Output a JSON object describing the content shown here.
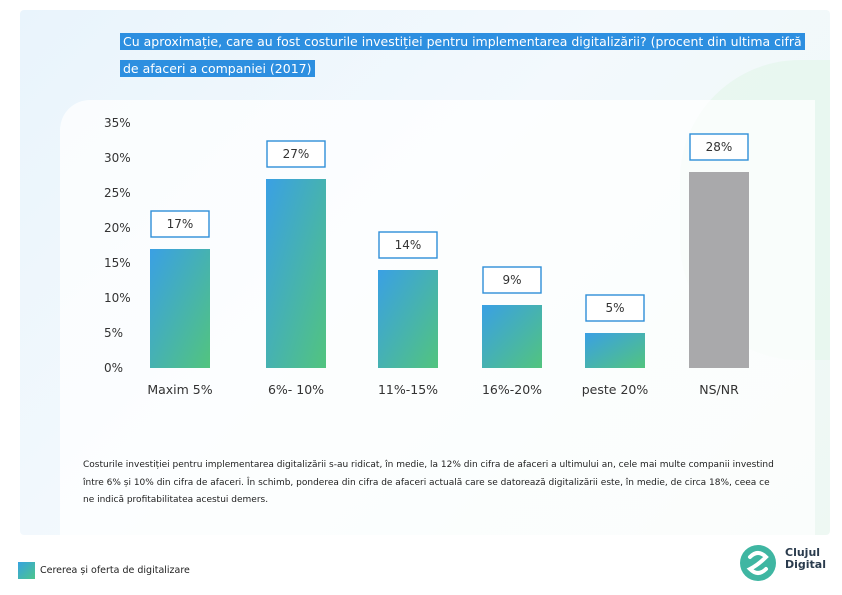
{
  "chart_data": {
    "type": "bar",
    "title": "Cu aproximație, care au fost costurile investiției pentru implementarea digitalizării? (procent din ultima cifră de afaceri a companiei (2017)",
    "categories": [
      "Maxim 5%",
      "6%- 10%",
      "11%-15%",
      "16%-20%",
      "peste 20%",
      "NS/NR"
    ],
    "values": [
      17,
      27,
      14,
      9,
      5,
      28
    ],
    "data_labels": [
      "17%",
      "27%",
      "14%",
      "9%",
      "5%",
      "28%"
    ],
    "yticks": [
      "0%",
      "5%",
      "10%",
      "15%",
      "20%",
      "25%",
      "30%",
      "35%"
    ],
    "ylim": [
      0,
      35
    ],
    "xlabel": "",
    "ylabel": "",
    "grid": false,
    "colors": {
      "gradient_top": "#3aa0e4",
      "gradient_bottom": "#52c47e",
      "nsnr": "#a9a9ab",
      "label_border": "#2f8fd8"
    }
  },
  "note": "Costurile investiției pentru implementarea digitalizării s-au ridicat, în medie, la 12% din cifra de afaceri a ultimului an, cele mai multe companii investind între 6% și 10% din cifra de afaceri. În schimb, ponderea din cifra de afaceri actuală care se datorează digitalizării este, în medie, de circa 18%, ceea ce ne indică profitabilitatea acestui demers.",
  "footer": {
    "section_label": "Cererea și oferta de digitalizare"
  },
  "logo": {
    "line1": "Clujul",
    "line2": "Digital"
  }
}
